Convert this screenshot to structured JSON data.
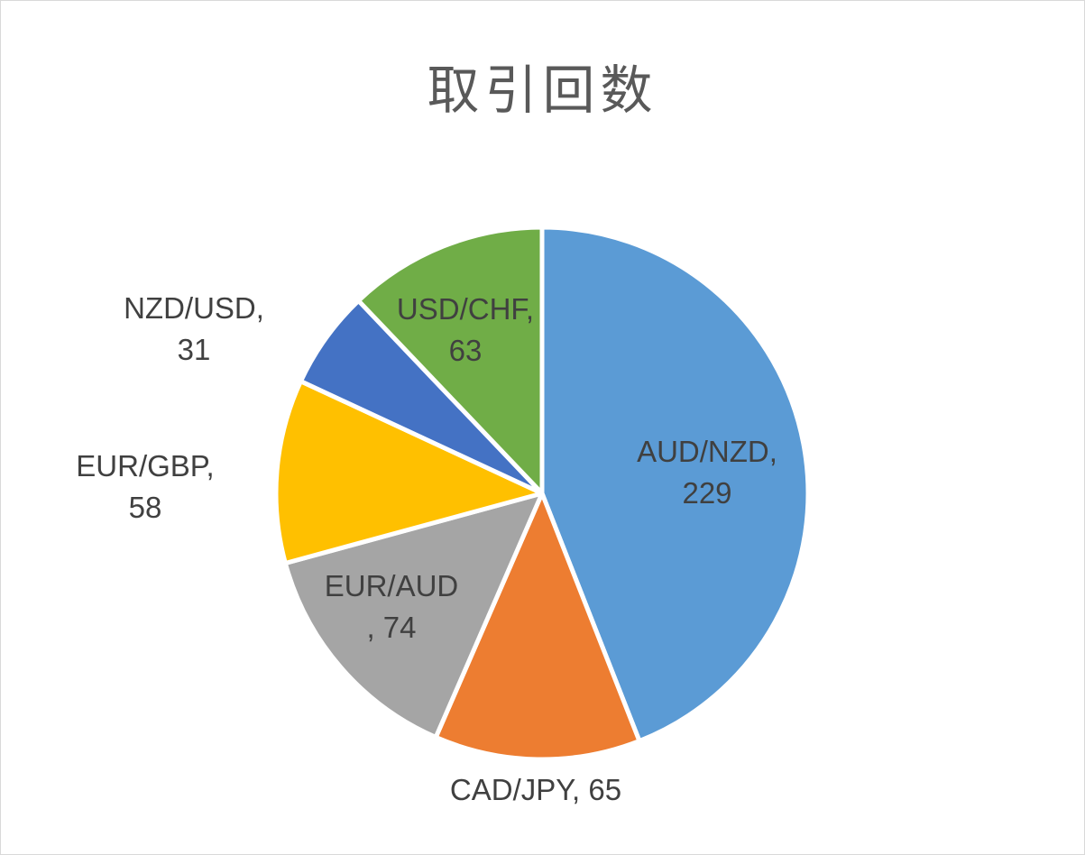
{
  "chart_data": {
    "type": "pie",
    "title": "取引回数",
    "series": [
      {
        "values": [
          229,
          65,
          74,
          58,
          31,
          63
        ],
        "categories": [
          "AUD/NZD",
          "CAD/JPY",
          "EUR/AUD",
          "EUR/GBP",
          "NZD/USD",
          "USD/CHF"
        ]
      }
    ],
    "data_labels": [
      {
        "category": "AUD/NZD",
        "lines": [
          "AUD/NZD,",
          "229"
        ]
      },
      {
        "category": "CAD/JPY",
        "lines": [
          "CAD/JPY, 65"
        ]
      },
      {
        "category": "EUR/AUD",
        "lines": [
          "EUR/AUD",
          ", 74"
        ]
      },
      {
        "category": "EUR/GBP",
        "lines": [
          "EUR/GBP,",
          "58"
        ]
      },
      {
        "category": "NZD/USD",
        "lines": [
          "NZD/USD,",
          "31"
        ]
      },
      {
        "category": "USD/CHF",
        "lines": [
          "USD/CHF,",
          "63"
        ]
      }
    ],
    "colors": [
      "#5b9bd5",
      "#ed7d31",
      "#a5a5a5",
      "#ffc000",
      "#4472c4",
      "#70ad47"
    ],
    "start_angle_deg": 0,
    "direction": "clockwise",
    "legend": "none"
  }
}
